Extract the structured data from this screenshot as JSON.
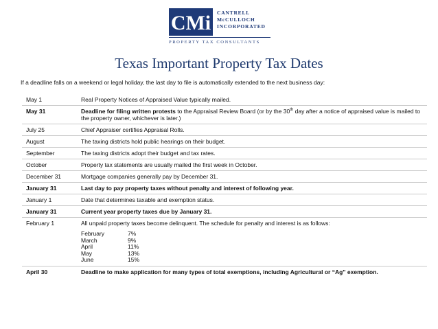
{
  "logo": {
    "mark": "CMi",
    "name_lines": [
      "CANTRELL",
      "McCULLOCH",
      "INCORPORATED"
    ],
    "tagline": "PROPERTY TAX CONSULTANTS",
    "brand_color": "#1f3a78"
  },
  "title": "Texas Important Property Tax Dates",
  "intro": "If a deadline falls on a weekend or legal holiday, the last day to file is automatically extended to the next business day:",
  "rows": [
    {
      "date": "May 1",
      "text": "Real Property Notices of Appraised Value typically mailed."
    },
    {
      "date": "May 31",
      "bold_part": "Deadline for filing written protests",
      "text_a": " to the Appraisal Review Board (or by the 30",
      "sup": "th",
      "text_b": " day after a notice of appraised value is mailed to the property owner, whichever is later.)"
    },
    {
      "date": "July 25",
      "text": "Chief Appraiser certifies Appraisal Rolls."
    },
    {
      "date": "August",
      "text": "The taxing districts hold public hearings on their budget."
    },
    {
      "date": "September",
      "text": "The taxing districts adopt their budget and tax rates."
    },
    {
      "date": "October",
      "text": "Property tax statements are usually mailed the first week in October."
    },
    {
      "date": "December 31",
      "text": "Mortgage companies generally pay by December 31."
    },
    {
      "date": "January 31",
      "text": "Last day to pay property taxes without penalty and interest of following year."
    },
    {
      "date": "January 1",
      "text": "Date that determines taxable and exemption status."
    },
    {
      "date": "January 31",
      "text": "Current year property taxes due by January 31."
    },
    {
      "date": "February 1",
      "text": "All unpaid property taxes become delinquent.  The schedule for penalty and interest is as follows:"
    },
    {
      "date": "April 30",
      "text": "Deadline to make application for many types of total exemptions, including Agricultural or “Ag” exemption."
    }
  ],
  "penalties": [
    {
      "month": "February",
      "rate": "7%"
    },
    {
      "month": "March",
      "rate": "9%"
    },
    {
      "month": "April",
      "rate": "11%"
    },
    {
      "month": "May",
      "rate": "13%"
    },
    {
      "month": "June",
      "rate": "15%"
    }
  ]
}
